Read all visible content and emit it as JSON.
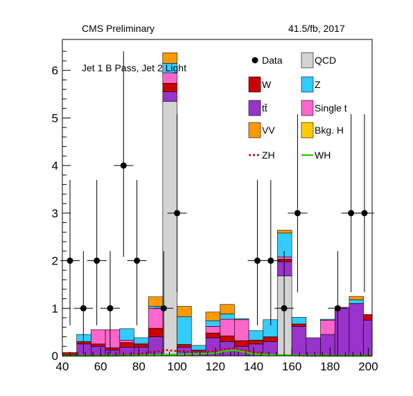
{
  "header": {
    "experiment": "CMS Preliminary",
    "luminosity": "41.5/fb, 2017",
    "region": "Jet 1 B Pass, Jet 2 Light"
  },
  "colors": {
    "qcd": "#d3d3d3",
    "w": "#cc0000",
    "z": "#33ccff",
    "ttbar": "#9933cc",
    "single_t": "#ff66cc",
    "vv": "#ff9900",
    "bkg_h": "#ffcc00",
    "zh": "#cc0000",
    "wh": "#33cc00"
  },
  "legend": {
    "data": "Data",
    "qcd": "QCD",
    "w": "W",
    "z": "Z",
    "ttbar": "tt̄",
    "single_t": "Single t",
    "vv": "VV",
    "bkg_h": "Bkg. H",
    "zh": "ZH",
    "wh": "WH"
  },
  "chart_data": {
    "type": "bar",
    "stacked": true,
    "x_bin_edges": [
      40,
      47.5,
      55,
      62.5,
      70,
      77.5,
      85,
      92.5,
      100,
      107.5,
      115,
      122.5,
      130,
      137.5,
      145,
      152.5,
      160,
      167.5,
      175,
      182.5,
      190,
      197.5,
      202
    ],
    "xlim": [
      40,
      202
    ],
    "ylim": [
      0,
      6.65
    ],
    "x_ticks": [
      40,
      60,
      80,
      100,
      120,
      140,
      160,
      180,
      200
    ],
    "y_ticks": [
      0,
      1,
      2,
      3,
      4,
      5,
      6
    ],
    "series": [
      {
        "name": "QCD",
        "key": "qcd",
        "values": [
          0,
          0,
          0,
          0,
          0,
          0,
          0,
          5.35,
          0,
          0,
          0,
          0,
          0,
          0,
          0,
          1.68,
          0,
          0,
          0,
          0,
          0,
          0
        ]
      },
      {
        "name": "tt̄",
        "key": "ttbar",
        "values": [
          0.02,
          0.25,
          0.2,
          0.12,
          0.18,
          0.18,
          0.4,
          0.2,
          0.18,
          0.1,
          0.38,
          0.3,
          0.2,
          0.25,
          0.3,
          0.3,
          0.62,
          0.38,
          0.45,
          1.02,
          1.1,
          0.75
        ]
      },
      {
        "name": "W",
        "key": "w",
        "values": [
          0.05,
          0.05,
          0.05,
          0.05,
          0.1,
          0.06,
          0.18,
          0.18,
          0.06,
          0.02,
          0.1,
          0.12,
          0.12,
          0.08,
          0.1,
          0.05,
          0.05,
          0,
          0,
          0,
          0,
          0.12
        ]
      },
      {
        "name": "Single t",
        "key": "single_t",
        "values": [
          0,
          0,
          0.3,
          0.38,
          0.05,
          0.02,
          0.42,
          0.22,
          0,
          0,
          0.14,
          0.35,
          0.44,
          0,
          0,
          0.05,
          0,
          0,
          0.3,
          0,
          0,
          0
        ]
      },
      {
        "name": "Z",
        "key": "z",
        "values": [
          0,
          0.15,
          0,
          0,
          0.24,
          0.12,
          0.04,
          0.2,
          0.58,
          0.1,
          0.12,
          0.11,
          0.02,
          0.2,
          0.36,
          0.5,
          0.14,
          0,
          0.02,
          0,
          0.08,
          0
        ]
      },
      {
        "name": "VV",
        "key": "vv",
        "values": [
          0,
          0,
          0,
          0,
          0,
          0,
          0.2,
          0.22,
          0.22,
          0,
          0.18,
          0.2,
          0,
          0,
          0,
          0.06,
          0,
          0,
          0,
          0,
          0.07,
          0
        ]
      },
      {
        "name": "Bkg. H",
        "key": "bkg_h",
        "values": [
          0,
          0,
          0,
          0,
          0,
          0,
          0,
          0,
          0,
          0,
          0,
          0,
          0,
          0,
          0,
          0,
          0,
          0,
          0,
          0,
          0,
          0
        ]
      }
    ],
    "data_points": {
      "name": "Data",
      "x": [
        44,
        51,
        58,
        65,
        72,
        79,
        93,
        100,
        142,
        149,
        156,
        163,
        184,
        191,
        198
      ],
      "y": [
        2,
        1,
        2,
        1,
        4,
        2,
        1,
        3,
        2,
        2,
        1,
        3,
        1,
        3,
        3
      ]
    },
    "signal_lines": [
      {
        "name": "ZH",
        "key": "zh",
        "style": "dotted",
        "x": [
          40,
          50,
          60,
          70,
          80,
          85,
          90,
          95,
          100,
          110,
          120,
          125,
          130,
          135,
          140,
          145,
          150,
          160,
          170,
          180,
          190,
          202
        ],
        "y": [
          0,
          0,
          0.01,
          0.02,
          0.04,
          0.07,
          0.1,
          0.12,
          0.1,
          0.08,
          0.1,
          0.14,
          0.16,
          0.12,
          0.08,
          0.05,
          0.02,
          0.01,
          0,
          0,
          0,
          0
        ]
      },
      {
        "name": "WH",
        "key": "wh",
        "style": "solid",
        "x": [
          40,
          60,
          80,
          90,
          100,
          110,
          120,
          125,
          130,
          135,
          140,
          150,
          160,
          180,
          202
        ],
        "y": [
          0,
          0,
          0.01,
          0.02,
          0.03,
          0.04,
          0.06,
          0.1,
          0.12,
          0.08,
          0.04,
          0.02,
          0.01,
          0,
          0
        ]
      }
    ]
  }
}
